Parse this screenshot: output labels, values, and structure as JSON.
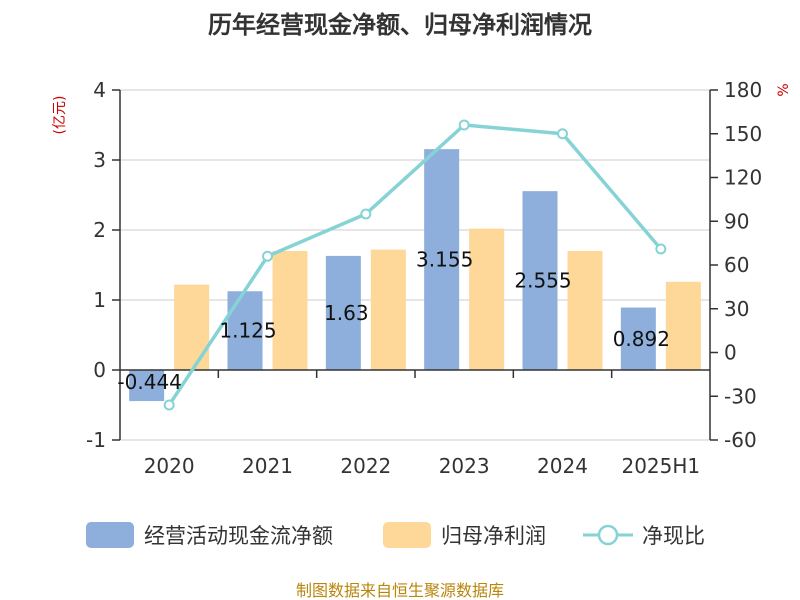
{
  "chart_data": {
    "type": "bar",
    "title": "历年经营现金净额、归母净利润情况",
    "categories": [
      "2020",
      "2021",
      "2022",
      "2023",
      "2024",
      "2025H1"
    ],
    "left_axis": {
      "unit": "(亿元)",
      "ylim": [
        -1,
        4
      ],
      "ticks": [
        "-1",
        "0",
        "1",
        "2",
        "3",
        "4"
      ],
      "tick_values": [
        -1,
        0,
        1,
        2,
        3,
        4
      ]
    },
    "right_axis": {
      "unit": "%",
      "ylim": [
        -60,
        180
      ],
      "ticks": [
        "-60",
        "-30",
        "0",
        "30",
        "60",
        "90",
        "120",
        "150",
        "180"
      ],
      "tick_values": [
        -60,
        -30,
        0,
        30,
        60,
        90,
        120,
        150,
        180
      ]
    },
    "series": [
      {
        "name": "经营活动现金流净额",
        "type": "bar",
        "axis": "left",
        "color": "#8eaedc",
        "values": [
          -0.444,
          1.125,
          1.63,
          3.155,
          2.555,
          0.892
        ],
        "labels": [
          "-0.444",
          "1.125",
          "1.63",
          "3.155",
          "2.555",
          "0.892"
        ]
      },
      {
        "name": "归母净利润",
        "type": "bar",
        "axis": "left",
        "color": "#fdd898",
        "values": [
          1.22,
          1.7,
          1.72,
          2.02,
          1.7,
          1.26
        ]
      },
      {
        "name": "净现比",
        "type": "line",
        "axis": "right",
        "color": "#86d3d6",
        "values": [
          -36,
          66,
          95,
          156,
          150,
          71
        ]
      }
    ],
    "legend_position": "bottom",
    "grid": true
  },
  "source": "制图数据来自恒生聚源数据库"
}
